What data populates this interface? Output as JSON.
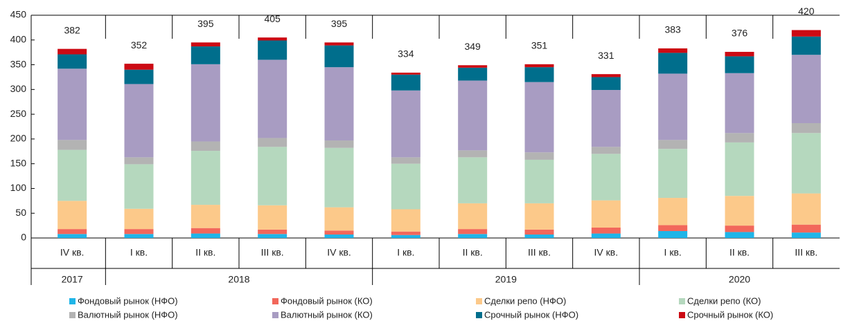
{
  "chart_data": {
    "type": "stacked_bar",
    "categories": [
      "IV кв.",
      "I кв.",
      "II кв.",
      "III кв.",
      "IV кв.",
      "I кв.",
      "II кв.",
      "III кв.",
      "IV кв.",
      "I кв.",
      "II кв.",
      "III кв."
    ],
    "groups": [
      {
        "name": "2017",
        "count": 1
      },
      {
        "name": "2018",
        "count": 4
      },
      {
        "name": "2019",
        "count": 4
      },
      {
        "name": "2020",
        "count": 3
      }
    ],
    "totals": [
      382,
      352,
      395,
      405,
      395,
      334,
      349,
      351,
      331,
      383,
      376,
      420
    ],
    "series": [
      {
        "name": "Фондовый рынок (НФО)",
        "color": "#1fb5e8",
        "values": [
          8,
          8,
          9,
          8,
          7,
          6,
          8,
          7,
          9,
          14,
          12,
          11
        ]
      },
      {
        "name": "Фондовый рынок (КО)",
        "color": "#f2675b",
        "values": [
          10,
          10,
          11,
          9,
          8,
          7,
          10,
          10,
          12,
          12,
          13,
          16
        ]
      },
      {
        "name": "Сделки репо (НФО)",
        "color": "#fcc98a",
        "values": [
          57,
          41,
          47,
          49,
          47,
          45,
          52,
          53,
          55,
          55,
          60,
          63
        ]
      },
      {
        "name": "Сделки репо (КО)",
        "color": "#b5d8be",
        "values": [
          103,
          90,
          109,
          118,
          120,
          92,
          93,
          88,
          94,
          99,
          108,
          122
        ]
      },
      {
        "name": "Валютный рынок (НФО)",
        "color": "#b3b3b3",
        "values": [
          20,
          14,
          19,
          18,
          15,
          13,
          14,
          15,
          14,
          18,
          19,
          20
        ]
      },
      {
        "name": "Валютный рынок (КО)",
        "color": "#a89cc2",
        "values": [
          144,
          148,
          156,
          158,
          148,
          135,
          141,
          142,
          115,
          134,
          121,
          138
        ]
      },
      {
        "name": "Срочный рынок (НФО)",
        "color": "#006e8c",
        "values": [
          29,
          29,
          36,
          39,
          44,
          32,
          26,
          30,
          26,
          42,
          34,
          37
        ]
      },
      {
        "name": "Срочный рынок (КО)",
        "color": "#cc0a13",
        "values": [
          11,
          12,
          8,
          6,
          6,
          4,
          5,
          6,
          6,
          9,
          9,
          13
        ]
      }
    ],
    "ylim": [
      0,
      450
    ],
    "yticks": [
      0,
      50,
      100,
      150,
      200,
      250,
      300,
      350,
      400,
      450
    ]
  }
}
